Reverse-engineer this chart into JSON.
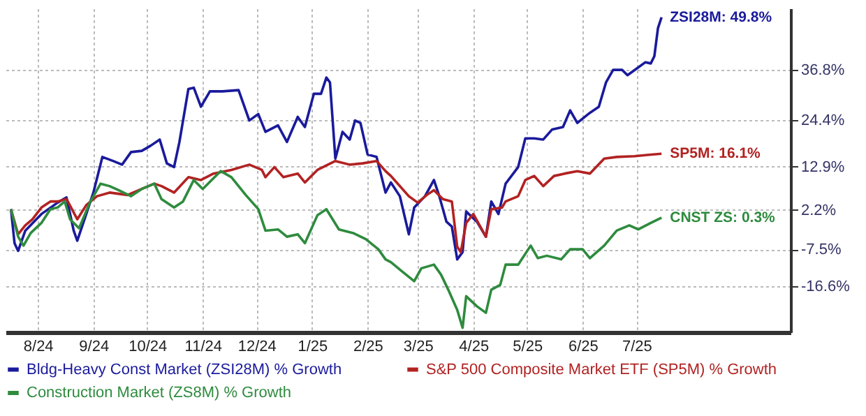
{
  "chart_data": {
    "type": "line",
    "xlim": [
      "2024-07-29",
      "2025-10-10"
    ],
    "ylim": [
      -28,
      52
    ],
    "xticks": [
      {
        "value": "2024-08-16",
        "label": "8/24"
      },
      {
        "value": "2024-09-16",
        "label": "9/24"
      },
      {
        "value": "2024-10-16",
        "label": "10/24"
      },
      {
        "value": "2024-11-16",
        "label": "11/24"
      },
      {
        "value": "2024-12-16",
        "label": "12/24"
      },
      {
        "value": "2025-01-16",
        "label": "1/25"
      },
      {
        "value": "2025-02-16",
        "label": "2/25"
      },
      {
        "value": "2025-03-16",
        "label": "3/25"
      },
      {
        "value": "2025-04-16",
        "label": "4/25"
      },
      {
        "value": "2025-05-16",
        "label": "5/25"
      },
      {
        "value": "2025-06-16",
        "label": "6/25"
      },
      {
        "value": "2025-07-16",
        "label": "7/25"
      }
    ],
    "yticks": [
      {
        "value": 36.8,
        "label": "36.8%"
      },
      {
        "value": 24.4,
        "label": "24.4%"
      },
      {
        "value": 12.9,
        "label": "12.9%"
      },
      {
        "value": 2.2,
        "label": "2.2%"
      },
      {
        "value": -7.5,
        "label": "-7.5%"
      },
      {
        "value": -16.6,
        "label": "-16.6%"
      }
    ],
    "grid": true,
    "legend": "bottom",
    "series": [
      {
        "name": "Bldg-Heavy Const Market (ZSI28M) % Growth",
        "color": "#1a1a9c",
        "x": [
          "2024-08-01",
          "2024-08-03",
          "2024-08-05",
          "2024-08-09",
          "2024-08-18",
          "2024-08-27",
          "2024-09-01",
          "2024-09-05",
          "2024-09-07",
          "2024-09-12",
          "2024-09-16",
          "2024-09-21",
          "2024-09-27",
          "2024-10-02",
          "2024-10-07",
          "2024-10-13",
          "2024-10-18",
          "2024-10-23",
          "2024-10-27",
          "2024-10-31",
          "2024-11-03",
          "2024-11-08",
          "2024-11-11",
          "2024-11-15",
          "2024-11-20",
          "2024-11-27",
          "2024-12-06",
          "2024-12-12",
          "2024-12-17",
          "2024-12-21",
          "2024-12-28",
          "2025-01-02",
          "2025-01-08",
          "2025-01-12",
          "2025-01-17",
          "2025-01-21",
          "2025-01-24",
          "2025-01-26",
          "2025-01-29",
          "2025-02-02",
          "2025-02-06",
          "2025-02-09",
          "2025-02-12",
          "2025-02-16",
          "2025-02-21",
          "2025-02-26",
          "2025-03-01",
          "2025-03-06",
          "2025-03-11",
          "2025-03-14",
          "2025-03-20",
          "2025-03-25",
          "2025-03-28",
          "2025-04-01",
          "2025-04-04",
          "2025-04-07",
          "2025-04-10",
          "2025-04-12",
          "2025-04-18",
          "2025-04-23",
          "2025-04-26",
          "2025-04-30",
          "2025-05-04",
          "2025-05-11",
          "2025-05-15",
          "2025-05-20",
          "2025-05-25",
          "2025-05-30",
          "2025-06-05",
          "2025-06-09",
          "2025-06-13",
          "2025-06-20",
          "2025-06-25",
          "2025-06-29",
          "2025-07-03",
          "2025-07-08",
          "2025-07-11",
          "2025-07-16",
          "2025-07-21",
          "2025-07-24",
          "2025-07-26",
          "2025-07-28",
          "2025-07-30"
        ],
        "values": [
          2.4,
          -6.0,
          -7.9,
          -2.9,
          1.2,
          4.0,
          5.3,
          -2.9,
          -5.4,
          1.2,
          6.5,
          15.3,
          14.3,
          13.4,
          16.5,
          16.8,
          18.1,
          19.6,
          13.7,
          12.8,
          19.0,
          32.1,
          32.4,
          27.7,
          31.5,
          31.5,
          31.8,
          24.3,
          25.9,
          21.5,
          23.1,
          19.0,
          25.2,
          22.7,
          30.9,
          30.9,
          34.9,
          33.7,
          14.9,
          21.5,
          19.6,
          24.3,
          23.7,
          15.9,
          15.3,
          6.5,
          9.0,
          5.6,
          -3.8,
          2.8,
          5.6,
          9.6,
          5.6,
          -0.7,
          -1.9,
          -10.0,
          -8.2,
          1.8,
          -0.7,
          -4.4,
          4.3,
          1.2,
          8.7,
          12.8,
          19.9,
          19.9,
          19.6,
          22.1,
          22.7,
          26.8,
          23.7,
          26.2,
          27.7,
          33.7,
          36.8,
          36.8,
          35.5,
          37.1,
          38.7,
          38.4,
          40.2,
          47.1,
          49.8
        ]
      },
      {
        "name": "S&P 500 Composite Market ETF (SP5M) % Growth",
        "color": "#b22222",
        "x": [
          "2024-08-01",
          "2024-08-05",
          "2024-08-09",
          "2024-08-13",
          "2024-08-18",
          "2024-08-23",
          "2024-08-27",
          "2024-09-01",
          "2024-09-07",
          "2024-09-12",
          "2024-09-18",
          "2024-09-25",
          "2024-10-05",
          "2024-10-13",
          "2024-10-20",
          "2024-10-24",
          "2024-10-31",
          "2024-11-08",
          "2024-11-15",
          "2024-11-22",
          "2024-12-02",
          "2024-12-12",
          "2024-12-19",
          "2024-12-21",
          "2024-12-26",
          "2024-12-31",
          "2025-01-08",
          "2025-01-12",
          "2025-01-19",
          "2025-01-29",
          "2025-02-06",
          "2025-02-13",
          "2025-02-21",
          "2025-02-26",
          "2025-03-01",
          "2025-03-11",
          "2025-03-16",
          "2025-03-21",
          "2025-03-25",
          "2025-03-30",
          "2025-04-04",
          "2025-04-07",
          "2025-04-09",
          "2025-04-12",
          "2025-04-16",
          "2025-04-23",
          "2025-04-26",
          "2025-05-02",
          "2025-05-04",
          "2025-05-11",
          "2025-05-15",
          "2025-05-20",
          "2025-05-25",
          "2025-05-31",
          "2025-06-06",
          "2025-06-13",
          "2025-06-20",
          "2025-06-28",
          "2025-07-05",
          "2025-07-15",
          "2025-07-22",
          "2025-07-30"
        ],
        "values": [
          2.4,
          -3.8,
          -1.6,
          -0.1,
          2.8,
          4.3,
          4.3,
          4.9,
          -0.1,
          3.4,
          5.6,
          6.5,
          5.9,
          7.4,
          8.7,
          8.1,
          6.5,
          10.3,
          9.6,
          11.2,
          12.1,
          13.4,
          12.1,
          10.3,
          12.8,
          10.3,
          11.2,
          9.0,
          12.1,
          14.3,
          13.4,
          13.7,
          14.3,
          11.8,
          10.6,
          5.6,
          4.0,
          5.9,
          7.1,
          4.9,
          4.3,
          -6.9,
          -8.2,
          -1.0,
          1.2,
          -4.4,
          2.4,
          2.8,
          4.3,
          5.6,
          9.6,
          10.6,
          8.1,
          10.6,
          11.2,
          11.8,
          11.2,
          14.9,
          15.3,
          15.5,
          15.8,
          16.1
        ]
      },
      {
        "name": "Construction Market (ZS8M) % Growth",
        "color": "#2e8b3e",
        "x": [
          "2024-08-01",
          "2024-08-05",
          "2024-08-08",
          "2024-08-12",
          "2024-08-18",
          "2024-08-23",
          "2024-08-27",
          "2024-08-31",
          "2024-09-03",
          "2024-09-08",
          "2024-09-14",
          "2024-09-20",
          "2024-09-25",
          "2024-09-30",
          "2024-10-07",
          "2024-10-13",
          "2024-10-20",
          "2024-10-24",
          "2024-10-31",
          "2024-11-05",
          "2024-11-11",
          "2024-11-16",
          "2024-11-26",
          "2024-12-02",
          "2024-12-10",
          "2024-12-17",
          "2024-12-21",
          "2024-12-28",
          "2025-01-02",
          "2025-01-08",
          "2025-01-12",
          "2025-01-19",
          "2025-01-24",
          "2025-01-31",
          "2025-02-08",
          "2025-02-15",
          "2025-02-22",
          "2025-02-26",
          "2025-03-01",
          "2025-03-07",
          "2025-03-14",
          "2025-03-18",
          "2025-03-25",
          "2025-03-29",
          "2025-04-02",
          "2025-04-07",
          "2025-04-10",
          "2025-04-12",
          "2025-04-18",
          "2025-04-23",
          "2025-04-26",
          "2025-05-01",
          "2025-05-04",
          "2025-05-11",
          "2025-05-18",
          "2025-05-22",
          "2025-05-27",
          "2025-06-04",
          "2025-06-09",
          "2025-06-16",
          "2025-06-20",
          "2025-06-28",
          "2025-07-05",
          "2025-07-12",
          "2025-07-17",
          "2025-07-24",
          "2025-07-30"
        ],
        "values": [
          2.4,
          -4.4,
          -6.6,
          -3.5,
          -1.0,
          2.4,
          2.8,
          4.3,
          -0.1,
          -2.3,
          4.0,
          8.7,
          8.1,
          7.1,
          5.6,
          7.4,
          8.7,
          4.9,
          2.8,
          4.3,
          9.6,
          7.4,
          11.8,
          10.3,
          5.9,
          2.4,
          -2.9,
          -2.6,
          -4.4,
          -3.8,
          -6.0,
          0.9,
          2.4,
          -2.6,
          -3.5,
          -5.0,
          -7.5,
          -10.0,
          -10.7,
          -12.9,
          -15.4,
          -12.2,
          -11.3,
          -13.8,
          -17.5,
          -22.5,
          -26.9,
          -19.1,
          -21.6,
          -23.2,
          -17.5,
          -16.3,
          -11.3,
          -11.3,
          -6.6,
          -9.7,
          -9.1,
          -10.0,
          -7.5,
          -7.5,
          -9.7,
          -6.6,
          -2.9,
          -1.6,
          -2.6,
          -1.0,
          0.3
        ]
      }
    ],
    "annotations": [
      {
        "text": "ZSI28M: 49.8%",
        "x": "2025-07-30",
        "y": 49.8
      },
      {
        "text": "SP5M: 16.1%",
        "x": "2025-07-30",
        "y": 16.1
      },
      {
        "text": "CNST ZS: 0.3%",
        "x": "2025-07-30",
        "y": 0.3
      }
    ]
  }
}
